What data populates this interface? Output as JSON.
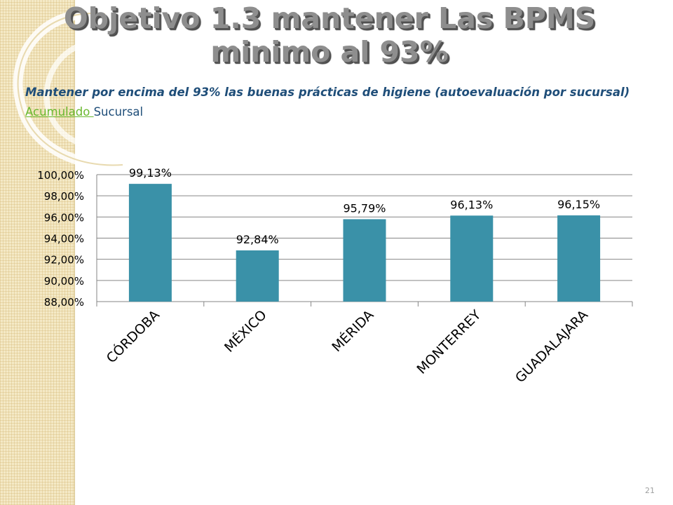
{
  "slide": {
    "title": "Objetivo 1.3 mantener Las BPMS minimo al 93%",
    "subtitle_part1": "Mantener por encima del 93% las buenas prácticas de higiene (autoevaluación por sucursal)",
    "subtitle_link": " Acumulado ",
    "subtitle_part2": "Sucursal",
    "page_number": "21"
  },
  "colors": {
    "bar": "#3a91a8",
    "axis": "#868686",
    "text": "#000000",
    "title": "#8e8e8e",
    "subtitle": "#1f4e79",
    "link": "#69b82f"
  },
  "chart_data": {
    "type": "bar",
    "categories": [
      "CÓRDOBA",
      "MÉXICO",
      "MÉRIDA",
      "MONTERREY",
      "GUADALAJARA"
    ],
    "values": [
      99.13,
      92.84,
      95.79,
      96.13,
      96.15
    ],
    "data_labels": [
      "99,13%",
      "92,84%",
      "95,79%",
      "96,13%",
      "96,15%"
    ],
    "y_ticks": [
      88,
      90,
      92,
      94,
      96,
      98,
      100
    ],
    "y_tick_labels": [
      "88,00%",
      "90,00%",
      "92,00%",
      "94,00%",
      "96,00%",
      "98,00%",
      "100,00%"
    ],
    "ylim": [
      88,
      100
    ],
    "title": "",
    "xlabel": "",
    "ylabel": "",
    "grid": true,
    "legend": "none"
  }
}
